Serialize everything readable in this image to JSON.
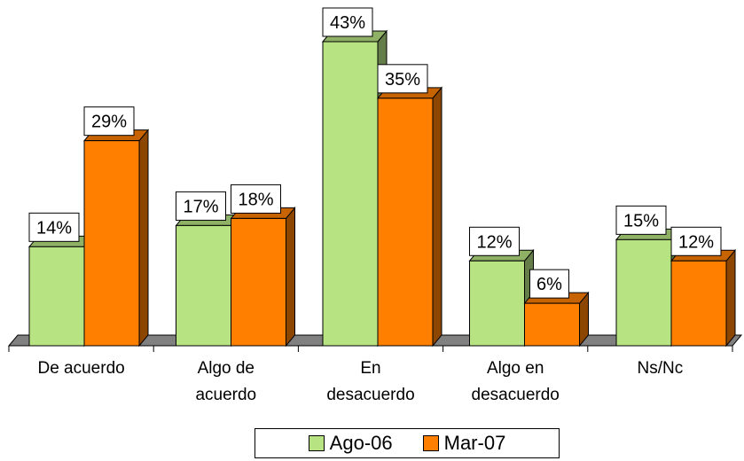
{
  "chart_data": {
    "type": "bar",
    "categories": [
      "De acuerdo",
      "Algo de acuerdo",
      "En desacuerdo",
      "Algo en desacuerdo",
      "Ns/Nc"
    ],
    "category_lines": [
      [
        "De acuerdo"
      ],
      [
        "Algo de",
        "acuerdo"
      ],
      [
        "En",
        "desacuerdo"
      ],
      [
        "Algo en",
        "desacuerdo"
      ],
      [
        "Ns/Nc"
      ]
    ],
    "series": [
      {
        "name": "Ago-06",
        "values": [
          14,
          17,
          43,
          12,
          15
        ],
        "labels": [
          "14%",
          "17%",
          "43%",
          "12%",
          "15%"
        ],
        "color": "#b7e383"
      },
      {
        "name": "Mar-07",
        "values": [
          29,
          18,
          35,
          6,
          12
        ],
        "labels": [
          "29%",
          "18%",
          "35%",
          "6%",
          "12%"
        ],
        "color": "#ff7f00"
      }
    ],
    "ylim": [
      0,
      43
    ],
    "legend_position": "bottom",
    "grid": false,
    "three_d": true
  }
}
